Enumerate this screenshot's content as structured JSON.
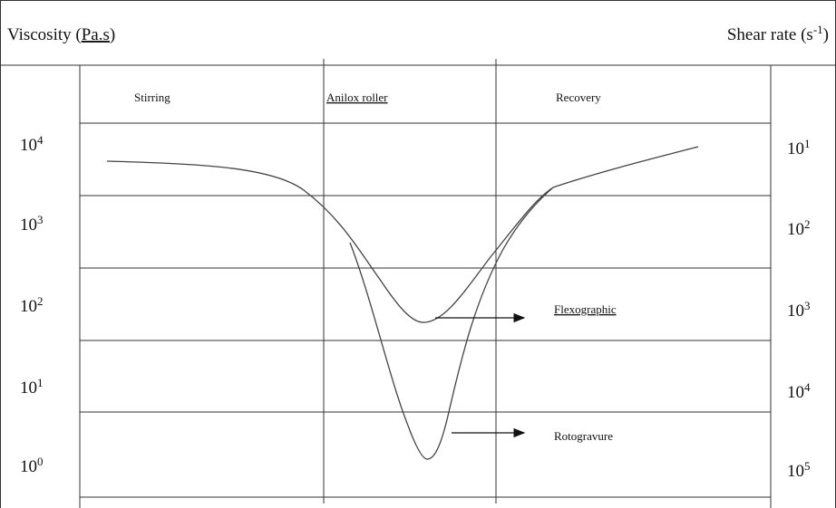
{
  "header": {
    "left": {
      "text": "Viscosity (",
      "underlined": "Pa.s",
      "tail": ")"
    },
    "right": {
      "text": "Shear rate (s",
      "sup": "-1",
      "tail": ")"
    }
  },
  "phases": [
    "Stirring",
    "Anilox roller",
    "Recovery"
  ],
  "left_axis": [
    {
      "base": "10",
      "exp": "4"
    },
    {
      "base": "10",
      "exp": "3"
    },
    {
      "base": "10",
      "exp": "2"
    },
    {
      "base": "10",
      "exp": "1"
    },
    {
      "base": "10",
      "exp": "0"
    }
  ],
  "right_axis": [
    {
      "base": "10",
      "exp": "1"
    },
    {
      "base": "10",
      "exp": "2"
    },
    {
      "base": "10",
      "exp": "3"
    },
    {
      "base": "10",
      "exp": "4"
    },
    {
      "base": "10",
      "exp": "5"
    }
  ],
  "curve_labels": [
    "Flexographic",
    "Rotogravure"
  ]
}
